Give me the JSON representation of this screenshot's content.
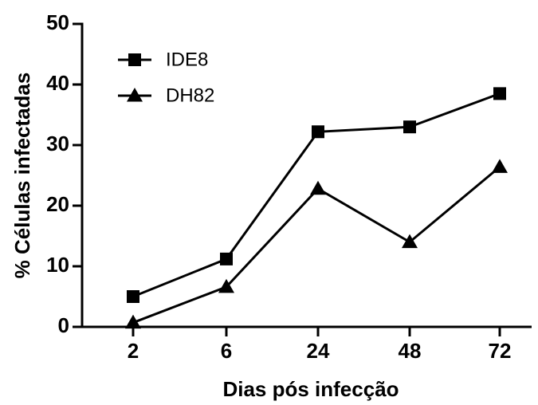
{
  "chart_data": {
    "type": "line",
    "x_label": "Dias pós infecção",
    "y_label": "% Células infectadas",
    "categories": [
      "2",
      "6",
      "24",
      "48",
      "72"
    ],
    "series": [
      {
        "name": "IDE8",
        "color": "#000000",
        "marker": "square",
        "values": [
          5,
          11.2,
          32.2,
          33,
          38.5
        ]
      },
      {
        "name": "DH82",
        "color": "#000000",
        "marker": "triangle",
        "values": [
          0.7,
          6.6,
          22.8,
          14,
          26.4
        ]
      }
    ],
    "ylim": [
      0,
      50
    ],
    "yticks": [
      0,
      10,
      20,
      30,
      40,
      50
    ],
    "legend": "upper left"
  }
}
